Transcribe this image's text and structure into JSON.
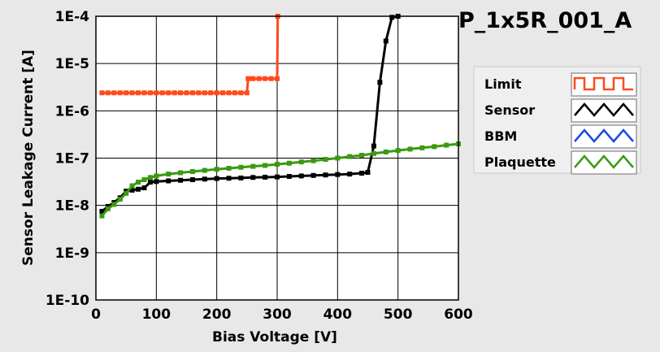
{
  "chart_data": {
    "type": "line",
    "title": "P_1x5R_001_A",
    "xlabel": "Bias Voltage [V]",
    "ylabel": "Sensor Leakage Current [A]",
    "xlim": [
      0,
      600
    ],
    "ylim": [
      1e-10,
      0.0001
    ],
    "yscale": "log",
    "grid": true,
    "legend_position": "right",
    "x_ticks": [
      "0",
      "100",
      "200",
      "300",
      "400",
      "500",
      "600"
    ],
    "y_ticks": [
      "1E-10",
      "1E-9",
      "1E-8",
      "1E-7",
      "1E-6",
      "1E-5",
      "1E-4"
    ],
    "series": [
      {
        "name": "Limit",
        "color": "#ff4a1c",
        "points": [
          [
            10,
            2.4e-06
          ],
          [
            20,
            2.4e-06
          ],
          [
            30,
            2.4e-06
          ],
          [
            40,
            2.4e-06
          ],
          [
            50,
            2.4e-06
          ],
          [
            60,
            2.4e-06
          ],
          [
            70,
            2.4e-06
          ],
          [
            80,
            2.4e-06
          ],
          [
            90,
            2.4e-06
          ],
          [
            100,
            2.4e-06
          ],
          [
            110,
            2.4e-06
          ],
          [
            120,
            2.4e-06
          ],
          [
            130,
            2.4e-06
          ],
          [
            140,
            2.4e-06
          ],
          [
            150,
            2.4e-06
          ],
          [
            160,
            2.4e-06
          ],
          [
            170,
            2.4e-06
          ],
          [
            180,
            2.4e-06
          ],
          [
            190,
            2.4e-06
          ],
          [
            200,
            2.4e-06
          ],
          [
            210,
            2.4e-06
          ],
          [
            220,
            2.4e-06
          ],
          [
            230,
            2.4e-06
          ],
          [
            240,
            2.4e-06
          ],
          [
            250,
            2.4e-06
          ],
          [
            252,
            4.8e-06
          ],
          [
            260,
            4.8e-06
          ],
          [
            270,
            4.8e-06
          ],
          [
            280,
            4.8e-06
          ],
          [
            290,
            4.8e-06
          ],
          [
            300,
            4.8e-06
          ],
          [
            301,
            0.0001
          ]
        ]
      },
      {
        "name": "Sensor",
        "color": "#000000",
        "points": [
          [
            10,
            7.5e-09
          ],
          [
            20,
            9.5e-09
          ],
          [
            30,
            1.15e-08
          ],
          [
            40,
            1.45e-08
          ],
          [
            50,
            2e-08
          ],
          [
            60,
            2.1e-08
          ],
          [
            70,
            2.2e-08
          ],
          [
            80,
            2.35e-08
          ],
          [
            90,
            3.1e-08
          ],
          [
            100,
            3.2e-08
          ],
          [
            120,
            3.3e-08
          ],
          [
            140,
            3.4e-08
          ],
          [
            160,
            3.5e-08
          ],
          [
            180,
            3.6e-08
          ],
          [
            200,
            3.7e-08
          ],
          [
            220,
            3.75e-08
          ],
          [
            240,
            3.8e-08
          ],
          [
            260,
            3.9e-08
          ],
          [
            280,
            3.95e-08
          ],
          [
            300,
            4e-08
          ],
          [
            320,
            4.1e-08
          ],
          [
            340,
            4.2e-08
          ],
          [
            360,
            4.3e-08
          ],
          [
            380,
            4.4e-08
          ],
          [
            400,
            4.5e-08
          ],
          [
            420,
            4.6e-08
          ],
          [
            440,
            4.8e-08
          ],
          [
            450,
            5e-08
          ],
          [
            460,
            1.8e-07
          ],
          [
            470,
            4e-06
          ],
          [
            480,
            3e-05
          ],
          [
            490,
            9.5e-05
          ],
          [
            500,
            0.0001
          ]
        ]
      },
      {
        "name": "BBM",
        "color": "#1c4adc",
        "points": []
      },
      {
        "name": "Plaquette",
        "color": "#3a9a10",
        "points": [
          [
            10,
            6e-09
          ],
          [
            20,
            8.5e-09
          ],
          [
            30,
            1.05e-08
          ],
          [
            40,
            1.35e-08
          ],
          [
            50,
            1.8e-08
          ],
          [
            60,
            2.6e-08
          ],
          [
            70,
            3.1e-08
          ],
          [
            80,
            3.5e-08
          ],
          [
            90,
            3.9e-08
          ],
          [
            100,
            4.2e-08
          ],
          [
            120,
            4.6e-08
          ],
          [
            140,
            4.9e-08
          ],
          [
            160,
            5.2e-08
          ],
          [
            180,
            5.5e-08
          ],
          [
            200,
            5.8e-08
          ],
          [
            220,
            6.1e-08
          ],
          [
            240,
            6.4e-08
          ],
          [
            260,
            6.7e-08
          ],
          [
            280,
            7e-08
          ],
          [
            300,
            7.4e-08
          ],
          [
            320,
            7.8e-08
          ],
          [
            340,
            8.3e-08
          ],
          [
            360,
            8.8e-08
          ],
          [
            380,
            9.4e-08
          ],
          [
            400,
            1e-07
          ],
          [
            420,
            1.08e-07
          ],
          [
            440,
            1.15e-07
          ],
          [
            460,
            1.25e-07
          ],
          [
            480,
            1.35e-07
          ],
          [
            500,
            1.45e-07
          ],
          [
            520,
            1.55e-07
          ],
          [
            540,
            1.65e-07
          ],
          [
            560,
            1.75e-07
          ],
          [
            580,
            1.88e-07
          ],
          [
            600,
            2e-07
          ]
        ]
      }
    ]
  }
}
